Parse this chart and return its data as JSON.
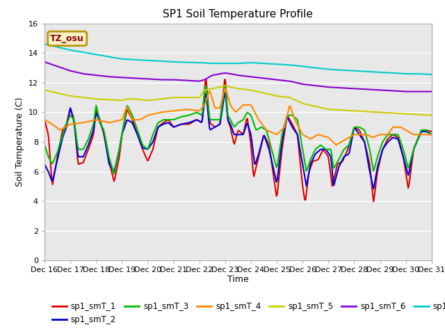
{
  "title": "SP1 Soil Temperature Profile",
  "xlabel": "Time",
  "ylabel": "Soil Temperature (C)",
  "ylim": [
    0,
    16
  ],
  "yticks": [
    0,
    2,
    4,
    6,
    8,
    10,
    12,
    14,
    16
  ],
  "plot_bg": "#e8e8e8",
  "fig_bg": "#ffffff",
  "annotation_text": "TZ_osu",
  "annotation_bg": "#f5f0c8",
  "annotation_border": "#b8960a",
  "annotation_color": "#8b0000",
  "colors": {
    "sp1_smT_1": "#dd0000",
    "sp1_smT_2": "#0000dd",
    "sp1_smT_3": "#00bb00",
    "sp1_smT_4": "#ff8800",
    "sp1_smT_5": "#cccc00",
    "sp1_smT_6": "#8800cc",
    "sp1_smT_7": "#00cccc"
  },
  "x_labels": [
    "Dec 16",
    "Dec 17",
    "Dec 18",
    "Dec 19",
    "Dec 20",
    "Dec 21",
    "Dec 22",
    "Dec 23",
    "Dec 24",
    "Dec 25",
    "Dec 26",
    "Dec 27",
    "Dec 28",
    "Dec 29",
    "Dec 30",
    "Dec 31"
  ],
  "num_points": 480
}
